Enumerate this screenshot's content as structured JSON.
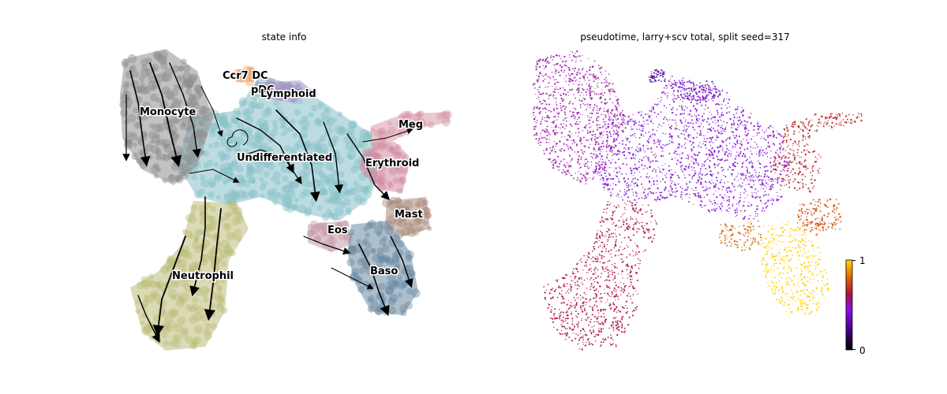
{
  "chart_data": [
    {
      "type": "scatter",
      "title": "state info",
      "legend": "on data",
      "series": [
        {
          "name": "Monocyte",
          "color": "#8f8f8f"
        },
        {
          "name": "Ccr7 DC",
          "color": "#f2a36a"
        },
        {
          "name": "pDC",
          "color": "#a48fc6"
        },
        {
          "name": "Lymphoid",
          "color": "#a48fc6"
        },
        {
          "name": "Undifferentiated",
          "color": "#86c0c8"
        },
        {
          "name": "Meg",
          "color": "#d89aa8"
        },
        {
          "name": "Erythroid",
          "color": "#d089a0"
        },
        {
          "name": "Mast",
          "color": "#a88a7a"
        },
        {
          "name": "Eos",
          "color": "#c79aa8"
        },
        {
          "name": "Baso",
          "color": "#6a8aa2"
        },
        {
          "name": "Neutrophil",
          "color": "#bcbd7a"
        }
      ],
      "overlay": "velocity streamlines"
    },
    {
      "type": "scatter",
      "title": "pseudotime, larry+scv total, split seed=317",
      "colorbar": {
        "min": 0,
        "max": 1,
        "ticks": [
          "0",
          "1"
        ],
        "colormap": "gnuplot"
      }
    }
  ]
}
